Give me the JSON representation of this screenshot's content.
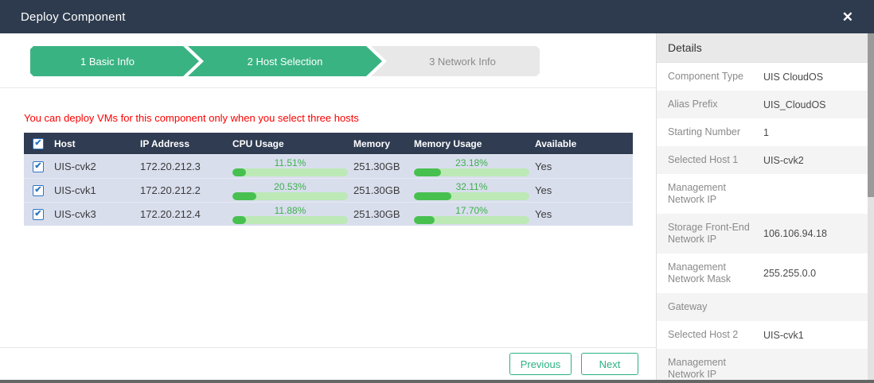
{
  "dialog": {
    "title": "Deploy Component",
    "close_icon": "✕"
  },
  "wizard": {
    "steps": [
      {
        "label": "1 Basic Info",
        "state": "active"
      },
      {
        "label": "2 Host Selection",
        "state": "active"
      },
      {
        "label": "3 Network Info",
        "state": "inactive"
      }
    ]
  },
  "warning": "You can deploy VMs for this component only when you select three hosts",
  "icons": {
    "check_glyph": "✔"
  },
  "host_table": {
    "columns": [
      "Host",
      "IP Address",
      "CPU Usage",
      "Memory",
      "Memory Usage",
      "Available"
    ],
    "rows": [
      {
        "checked": true,
        "host": "UIS-cvk2",
        "ip": "172.20.212.3",
        "cpu_pct": "11.51%",
        "cpu_value": 11.51,
        "memory": "251.30GB",
        "mem_pct": "23.18%",
        "mem_value": 23.18,
        "available": "Yes"
      },
      {
        "checked": true,
        "host": "UIS-cvk1",
        "ip": "172.20.212.2",
        "cpu_pct": "20.53%",
        "cpu_value": 20.53,
        "memory": "251.30GB",
        "mem_pct": "32.11%",
        "mem_value": 32.11,
        "available": "Yes"
      },
      {
        "checked": true,
        "host": "UIS-cvk3",
        "ip": "172.20.212.4",
        "cpu_pct": "11.88%",
        "cpu_value": 11.88,
        "memory": "251.30GB",
        "mem_pct": "17.70%",
        "mem_value": 17.7,
        "available": "Yes"
      }
    ]
  },
  "footer": {
    "previous_label": "Previous",
    "next_label": "Next"
  },
  "details": {
    "title": "Details",
    "rows": [
      {
        "label": "Component Type",
        "value": "UIS CloudOS"
      },
      {
        "label": "Alias Prefix",
        "value": "UIS_CloudOS"
      },
      {
        "label": "Starting Number",
        "value": "1"
      },
      {
        "label": "Selected Host 1",
        "value": "UIS-cvk2"
      },
      {
        "label": "Management Network IP",
        "value": ""
      },
      {
        "label": "Storage Front-End Network IP",
        "value": "106.106.94.18"
      },
      {
        "label": "Management Network Mask",
        "value": "255.255.0.0"
      },
      {
        "label": "Gateway",
        "value": ""
      },
      {
        "label": "Selected Host 2",
        "value": "UIS-cvk1"
      },
      {
        "label": "Management Network IP",
        "value": ""
      }
    ]
  },
  "colors": {
    "titlebar_bg": "#2e3b4e",
    "step_active_green": "#3ab383",
    "step_inactive_gray": "#e8e8e8",
    "table_header_bg": "#2f3c52",
    "table_row_bg": "#d9deed",
    "progress_track": "#bce9b5",
    "progress_fill": "#47c050",
    "progress_text": "#3cb14b",
    "warning_red": "#fe0000",
    "button_green": "#2bb184",
    "checkbox_blue": "#2e75c0"
  }
}
